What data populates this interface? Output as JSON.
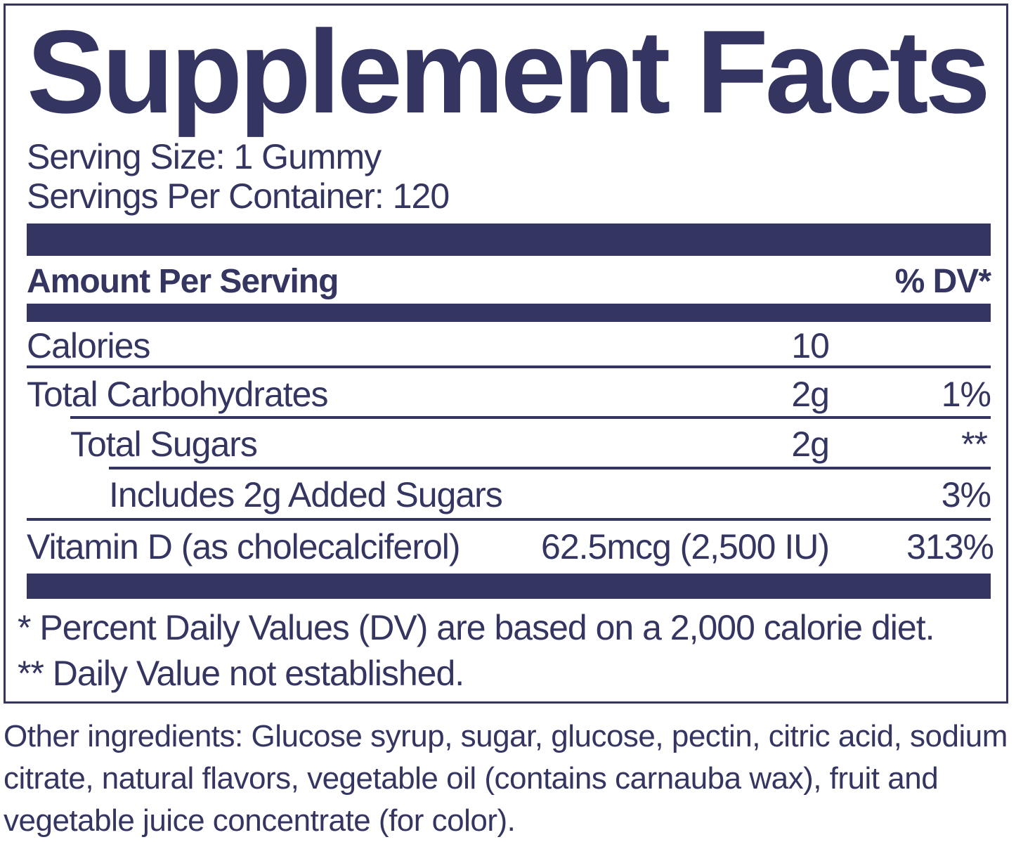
{
  "title": "Supplement Facts",
  "serving_size": "Serving Size: 1 Gummy",
  "servings_per_container": "Servings Per Container: 120",
  "header": {
    "amount_per_serving": "Amount Per Serving",
    "dv": "% DV*"
  },
  "rows": [
    {
      "name": "Calories",
      "amount": "10",
      "dv": ""
    },
    {
      "name": "Total Carbohydrates",
      "amount": "2g",
      "dv": "1%"
    },
    {
      "name": "Total Sugars",
      "amount": "2g",
      "dv": "**"
    },
    {
      "name": "Includes 2g Added Sugars",
      "amount": "",
      "dv": "3%"
    },
    {
      "name": "Vitamin D (as cholecalciferol)",
      "amount": "62.5mcg (2,500 IU)",
      "dv": "313%"
    }
  ],
  "footnotes": [
    "* Percent Daily Values (DV) are based on a 2,000 calorie diet.",
    "** Daily Value not established."
  ],
  "other_ingredients": "Other ingredients: Glucose syrup, sugar, glucose, pectin, citric acid, sodium citrate, natural flavors, vegetable oil (contains carnauba wax), fruit and vegetable juice concentrate (for color).",
  "colors": {
    "ink": "#343561",
    "background": "#ffffff"
  }
}
